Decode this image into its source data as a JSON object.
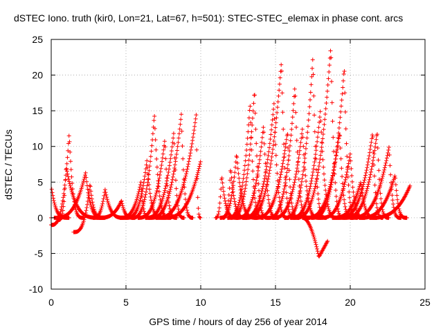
{
  "chart_data": {
    "type": "scatter",
    "title": "dSTEC Iono. truth (kir0, Lon=21, Lat=67, h=501): STEC-STEC_elemax in phase cont. arcs",
    "xlabel": "GPS time / hours of day 256 of year 2014",
    "ylabel": "dSTEC  / TECUs",
    "xlim": [
      0,
      25
    ],
    "ylim": [
      -10,
      25
    ],
    "xticks": [
      0,
      5,
      10,
      15,
      20,
      25
    ],
    "yticks": [
      -10,
      -5,
      0,
      5,
      10,
      15,
      20,
      25
    ],
    "grid": true,
    "marker": "+",
    "color": "#ff0000",
    "arcs": [
      {
        "start": 0.0,
        "peak": 0.0,
        "end": 1.2,
        "peak_val": 4.5,
        "base": 0.0
      },
      {
        "start": 0.0,
        "peak": 1.2,
        "end": 2.2,
        "peak_val": 11.8,
        "base": -1.0
      },
      {
        "start": 0.2,
        "peak": 2.3,
        "end": 3.6,
        "peak_val": 6.3,
        "base": 0.0
      },
      {
        "start": 0.5,
        "peak": 1.0,
        "end": 3.4,
        "peak_val": 7.2,
        "base": -0.3
      },
      {
        "start": 1.5,
        "peak": 2.6,
        "end": 3.5,
        "peak_val": 4.8,
        "base": -2.0
      },
      {
        "start": 2.8,
        "peak": 3.6,
        "end": 5.0,
        "peak_val": 4.0,
        "base": 0.0
      },
      {
        "start": 3.2,
        "peak": 4.7,
        "end": 5.6,
        "peak_val": 2.4,
        "base": 0.0
      },
      {
        "start": 4.6,
        "peak": 6.0,
        "end": 6.6,
        "peak_val": 5.0,
        "base": 0.0
      },
      {
        "start": 5.0,
        "peak": 6.4,
        "end": 7.5,
        "peak_val": 8.0,
        "base": 0.0
      },
      {
        "start": 5.4,
        "peak": 6.9,
        "end": 8.0,
        "peak_val": 14.5,
        "base": 0.0
      },
      {
        "start": 5.8,
        "peak": 7.6,
        "end": 8.4,
        "peak_val": 11.0,
        "base": 0.0
      },
      {
        "start": 6.3,
        "peak": 8.2,
        "end": 8.9,
        "peak_val": 12.0,
        "base": 0.0
      },
      {
        "start": 6.6,
        "peak": 8.7,
        "end": 9.5,
        "peak_val": 14.5,
        "base": 0.0
      },
      {
        "start": 7.0,
        "peak": 9.7,
        "end": 10.0,
        "peak_val": 14.5,
        "base": 0.0
      },
      {
        "start": 7.5,
        "peak": 10.0,
        "end": 10.0,
        "peak_val": 8.0,
        "base": 0.0
      },
      {
        "start": 11.0,
        "peak": 11.4,
        "end": 12.5,
        "peak_val": 6.0,
        "base": 0.0
      },
      {
        "start": 11.5,
        "peak": 12.0,
        "end": 13.1,
        "peak_val": 7.0,
        "base": 0.0
      },
      {
        "start": 11.3,
        "peak": 12.4,
        "end": 13.8,
        "peak_val": 9.0,
        "base": 0.0
      },
      {
        "start": 11.8,
        "peak": 13.3,
        "end": 14.2,
        "peak_val": 16.0,
        "base": 0.0
      },
      {
        "start": 12.0,
        "peak": 13.6,
        "end": 14.5,
        "peak_val": 18.0,
        "base": 0.0
      },
      {
        "start": 12.4,
        "peak": 14.2,
        "end": 15.2,
        "peak_val": 13.0,
        "base": 0.0
      },
      {
        "start": 12.8,
        "peak": 14.9,
        "end": 15.9,
        "peak_val": 16.0,
        "base": 0.0
      },
      {
        "start": 13.0,
        "peak": 15.4,
        "end": 16.3,
        "peak_val": 22.0,
        "base": 0.0
      },
      {
        "start": 13.6,
        "peak": 15.8,
        "end": 16.6,
        "peak_val": 12.0,
        "base": 0.0
      },
      {
        "start": 14.5,
        "peak": 16.3,
        "end": 17.3,
        "peak_val": 18.5,
        "base": 0.0
      },
      {
        "start": 14.8,
        "peak": 16.8,
        "end": 18.0,
        "peak_val": 12.5,
        "base": 0.0
      },
      {
        "start": 15.6,
        "peak": 17.5,
        "end": 18.4,
        "peak_val": 22.5,
        "base": 0.0
      },
      {
        "start": 16.0,
        "peak": 18.0,
        "end": 19.2,
        "peak_val": 15.0,
        "base": 0.0
      },
      {
        "start": 16.3,
        "peak": 18.7,
        "end": 19.6,
        "peak_val": 24.0,
        "base": 0.0
      },
      {
        "start": 17.0,
        "peak": 19.3,
        "end": 20.2,
        "peak_val": 12.0,
        "base": 0.0
      },
      {
        "start": 17.4,
        "peak": 19.6,
        "end": 20.5,
        "peak_val": 21.0,
        "base": 0.0
      },
      {
        "start": 18.0,
        "peak": 20.0,
        "end": 21.0,
        "peak_val": 9.0,
        "base": 0.0
      },
      {
        "start": 18.8,
        "peak": 20.7,
        "end": 21.8,
        "peak_val": 5.0,
        "base": 0.0
      },
      {
        "start": 19.2,
        "peak": 21.5,
        "end": 22.2,
        "peak_val": 12.0,
        "base": 0.0
      },
      {
        "start": 19.6,
        "peak": 21.8,
        "end": 22.6,
        "peak_val": 12.0,
        "base": 0.0
      },
      {
        "start": 20.0,
        "peak": 22.6,
        "end": 23.4,
        "peak_val": 10.0,
        "base": 0.0
      },
      {
        "start": 20.6,
        "peak": 23.0,
        "end": 23.8,
        "peak_val": 6.0,
        "base": 0.0
      },
      {
        "start": 21.3,
        "peak": 24.0,
        "end": 24.0,
        "peak_val": 4.5,
        "base": 0.0
      }
    ],
    "dip": {
      "start": 16.8,
      "min_x": 17.9,
      "end": 18.5,
      "min_val": -5.5,
      "end_val": -3.2
    }
  }
}
